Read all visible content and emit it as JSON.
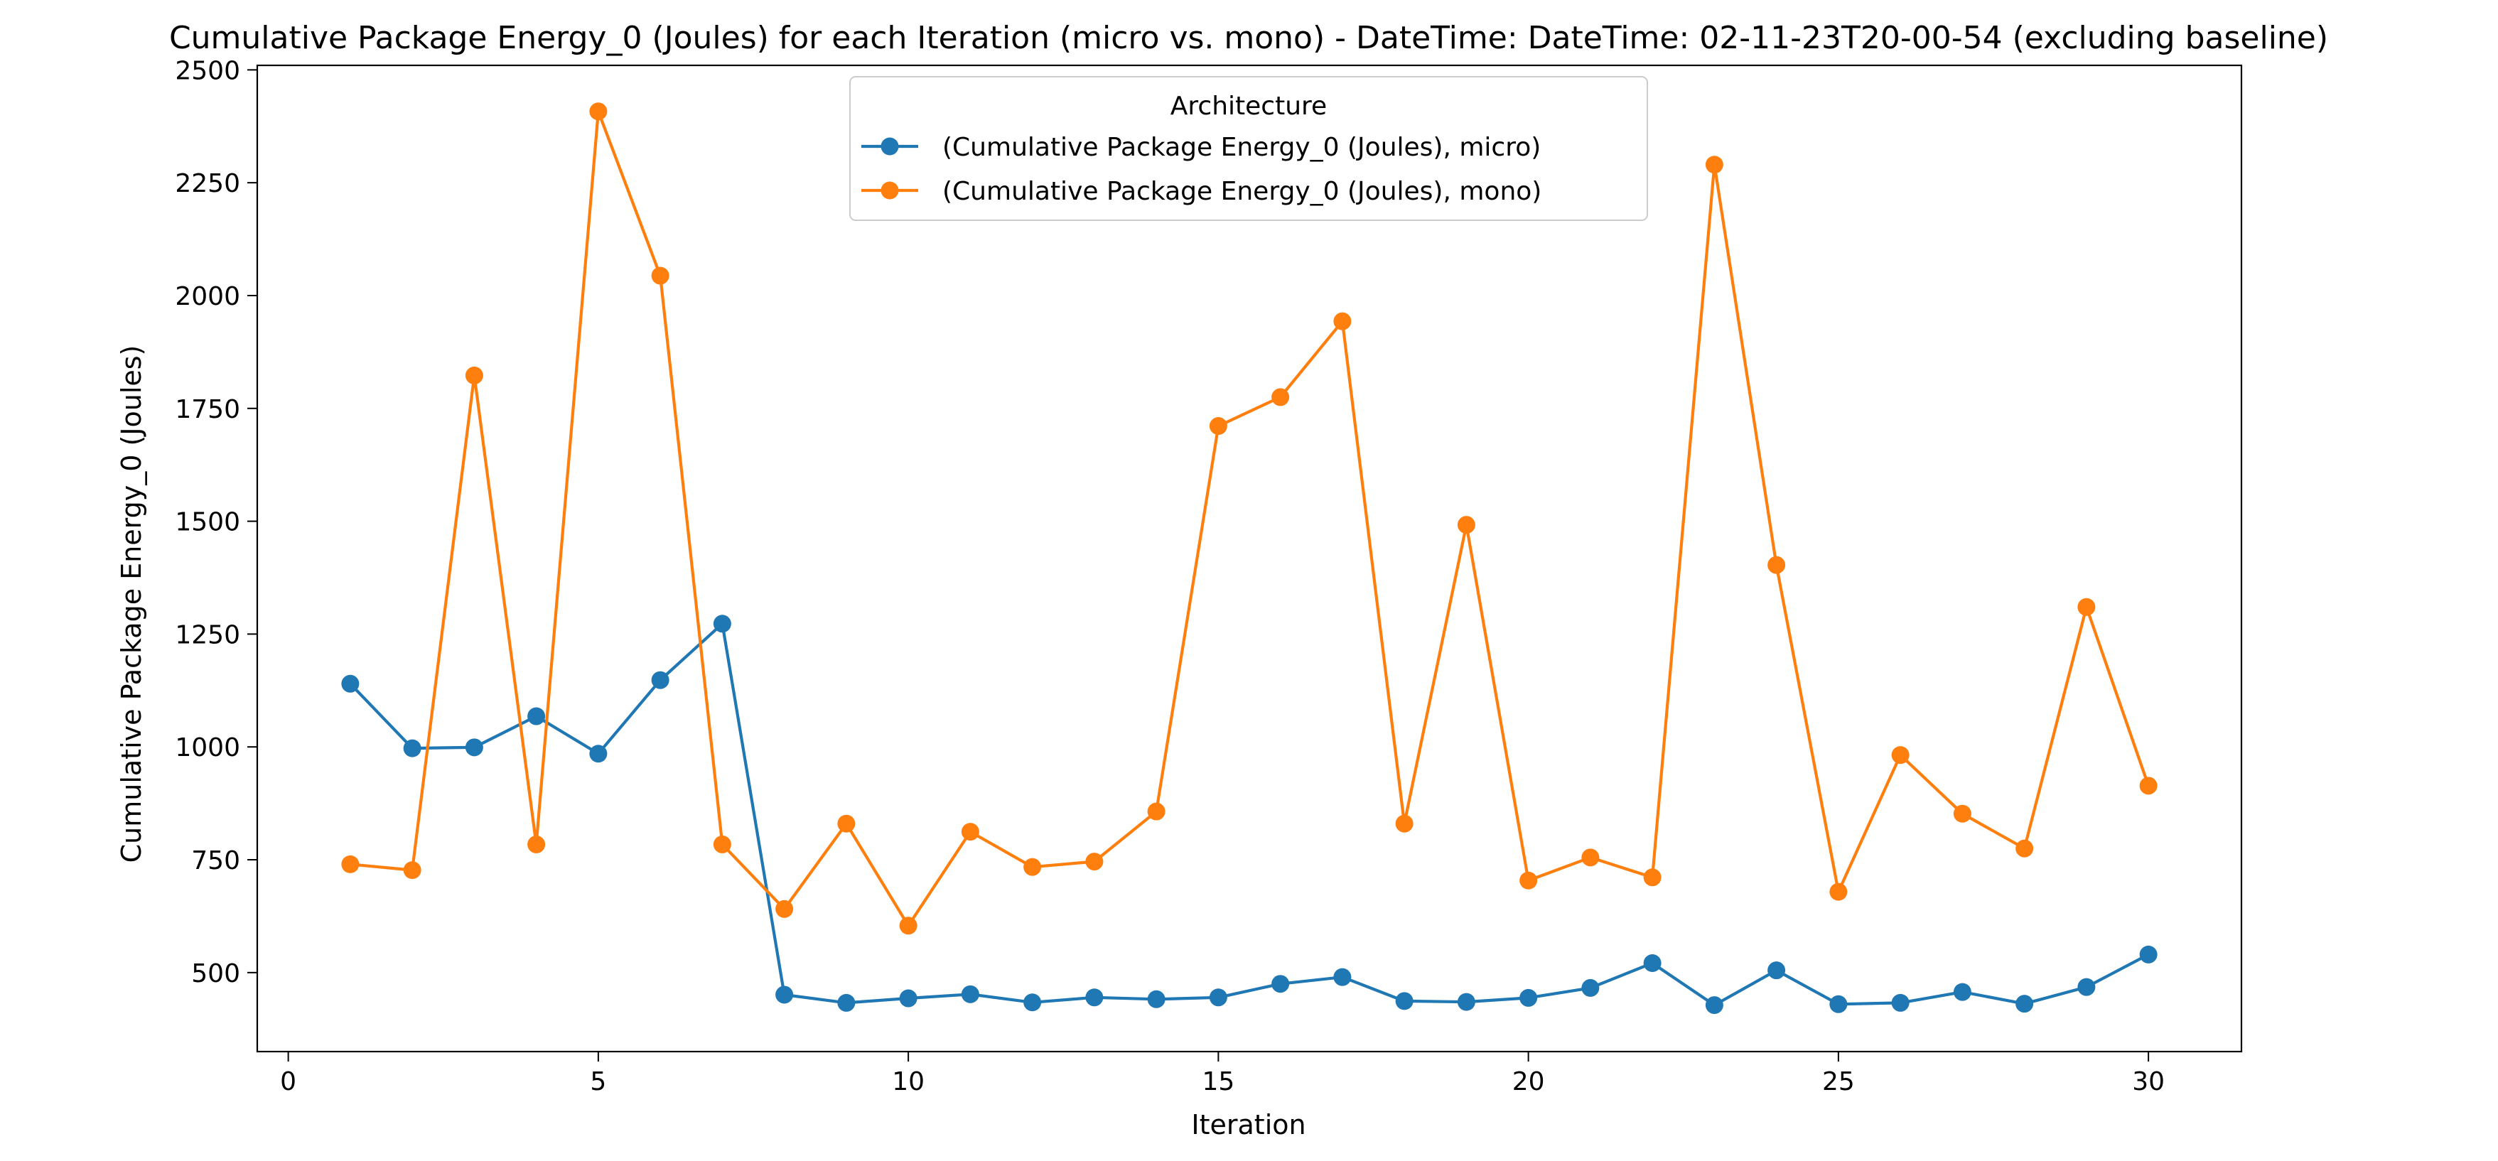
{
  "chart_data": {
    "type": "line",
    "title": "Cumulative Package Energy_0 (Joules) for each Iteration (micro vs. mono) - DateTime: DateTime: 02-11-23T20-00-54 (excluding baseline)",
    "xlabel": "Iteration",
    "ylabel": "Cumulative Package Energy_0 (Joules)",
    "xlim": [
      -0.5,
      31.5
    ],
    "ylim": [
      325,
      2510
    ],
    "x_ticks": [
      0,
      5,
      10,
      15,
      20,
      25,
      30
    ],
    "y_ticks": [
      500,
      750,
      1000,
      1250,
      1500,
      1750,
      2000,
      2250,
      2500
    ],
    "grid": false,
    "legend": {
      "title": "Architecture",
      "placement": "top-center"
    },
    "x": [
      1,
      2,
      3,
      4,
      5,
      6,
      7,
      8,
      9,
      10,
      11,
      12,
      13,
      14,
      15,
      16,
      17,
      18,
      19,
      20,
      21,
      22,
      23,
      24,
      25,
      26,
      27,
      28,
      29,
      30
    ],
    "series": [
      {
        "name": "(Cumulative Package Energy_0 (Joules), micro)",
        "color": "#1f77b4",
        "values": [
          1140,
          997,
          999,
          1068,
          985,
          1148,
          1273,
          451,
          433,
          443,
          452,
          434,
          445,
          441,
          445,
          475,
          490,
          437,
          435,
          444,
          466,
          521,
          428,
          505,
          430,
          433,
          457,
          431,
          468,
          540
        ]
      },
      {
        "name": "(Cumulative Package Energy_0 (Joules), mono)",
        "color": "#ff7f0e",
        "values": [
          740,
          727,
          1823,
          784,
          2408,
          2044,
          784,
          641,
          830,
          604,
          812,
          734,
          746,
          857,
          1711,
          1775,
          1943,
          830,
          1492,
          704,
          755,
          711,
          2290,
          1403,
          679,
          982,
          852,
          775,
          1310,
          914
        ]
      }
    ]
  }
}
